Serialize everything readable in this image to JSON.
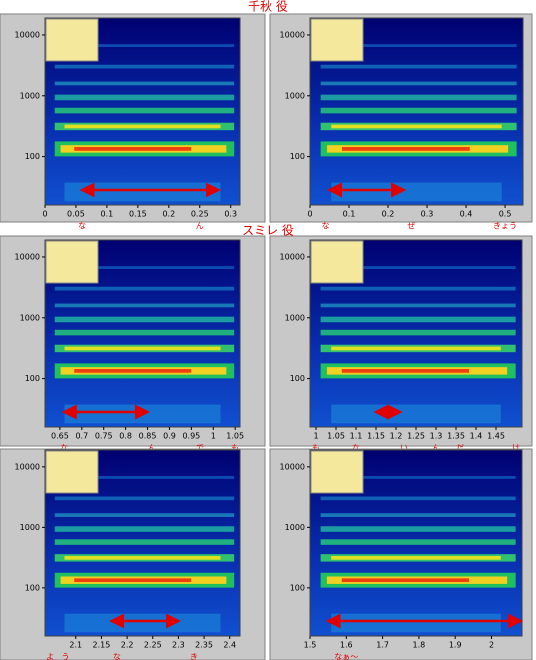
{
  "sections": [
    {
      "title": "千秋 役"
    },
    {
      "title": "スミレ 役"
    }
  ],
  "chart_data": [
    {
      "type": "spectrogram",
      "log_y": true,
      "ylim": [
        16,
        19000
      ],
      "yticks": [
        100,
        1000,
        10000
      ],
      "xlim": [
        0,
        0.315
      ],
      "xticks": [
        0,
        0.05,
        0.1,
        0.15,
        0.2,
        0.25,
        0.3
      ],
      "annotations": [
        {
          "text": "な",
          "x": 0.06
        },
        {
          "text": "ん",
          "x": 0.25
        }
      ],
      "arrow": {
        "x": [
          0.06,
          0.28
        ],
        "color": "#e00000"
      }
    },
    {
      "type": "spectrogram",
      "log_y": true,
      "ylim": [
        16,
        19000
      ],
      "yticks": [
        100,
        1000,
        10000
      ],
      "xlim": [
        0,
        0.546
      ],
      "xticks": [
        0,
        0.1,
        0.2,
        0.3,
        0.4,
        0.5
      ],
      "annotations": [
        {
          "text": "な",
          "x": 0.04
        },
        {
          "text": "ぜ",
          "x": 0.26
        },
        {
          "text": "きょう",
          "x": 0.5
        }
      ],
      "arrow": {
        "x": [
          0.05,
          0.24
        ],
        "color": "#e00000"
      }
    },
    {
      "type": "spectrogram",
      "log_y": true,
      "ylim": [
        16,
        19000
      ],
      "yticks": [
        100,
        1000,
        10000
      ],
      "xlim": [
        0.616,
        1.061
      ],
      "xticks": [
        0.65,
        0.7,
        0.75,
        0.8,
        0.85,
        0.9,
        0.95,
        1,
        1.05
      ],
      "annotations": [
        {
          "text": "な",
          "x": 0.66
        },
        {
          "text": "ん",
          "x": 0.86
        },
        {
          "text": "で",
          "x": 0.97
        },
        {
          "text": "も",
          "x": 1.05
        }
      ],
      "arrow": {
        "x": [
          0.66,
          0.85
        ],
        "color": "#e00000"
      }
    },
    {
      "type": "spectrogram",
      "log_y": true,
      "ylim": [
        16,
        19000
      ],
      "yticks": [
        100,
        1000,
        10000
      ],
      "xlim": [
        0.985,
        1.515
      ],
      "xticks": [
        1,
        1.05,
        1.1,
        1.15,
        1.2,
        1.25,
        1.3,
        1.35,
        1.4,
        1.45
      ],
      "annotations": [
        {
          "text": "も",
          "x": 1.0
        },
        {
          "text": "な",
          "x": 1.1
        },
        {
          "text": "い",
          "x": 1.22
        },
        {
          "text": "ん",
          "x": 1.3
        },
        {
          "text": "だ",
          "x": 1.36
        },
        {
          "text": "け",
          "x": 1.5
        }
      ],
      "arrow": {
        "x": [
          1.15,
          1.21
        ],
        "color": "#e00000"
      }
    },
    {
      "type": "spectrogram",
      "log_y": true,
      "ylim": [
        16,
        19000
      ],
      "yticks": [
        100,
        1000,
        10000
      ],
      "xlim": [
        2.04,
        2.42
      ],
      "xticks": [
        2.1,
        2.15,
        2.2,
        2.25,
        2.3,
        2.35,
        2.4
      ],
      "annotations": [
        {
          "text": "よ",
          "x": 2.05
        },
        {
          "text": "う",
          "x": 2.08
        },
        {
          "text": "な",
          "x": 2.18
        },
        {
          "text": "き",
          "x": 2.33
        }
      ],
      "arrow": {
        "x": [
          2.17,
          2.3
        ],
        "color": "#e00000"
      }
    },
    {
      "type": "spectrogram",
      "log_y": true,
      "ylim": [
        16,
        19000
      ],
      "yticks": [
        100,
        1000,
        10000
      ],
      "xlim": [
        1.5,
        2.084
      ],
      "xticks": [
        1.5,
        1.6,
        1.7,
        1.8,
        1.9,
        2
      ],
      "annotations": [
        {
          "text": "なぁ〜",
          "x": 1.6
        }
      ],
      "arrow": {
        "x": [
          1.55,
          2.08
        ],
        "color": "#e00000"
      }
    }
  ]
}
